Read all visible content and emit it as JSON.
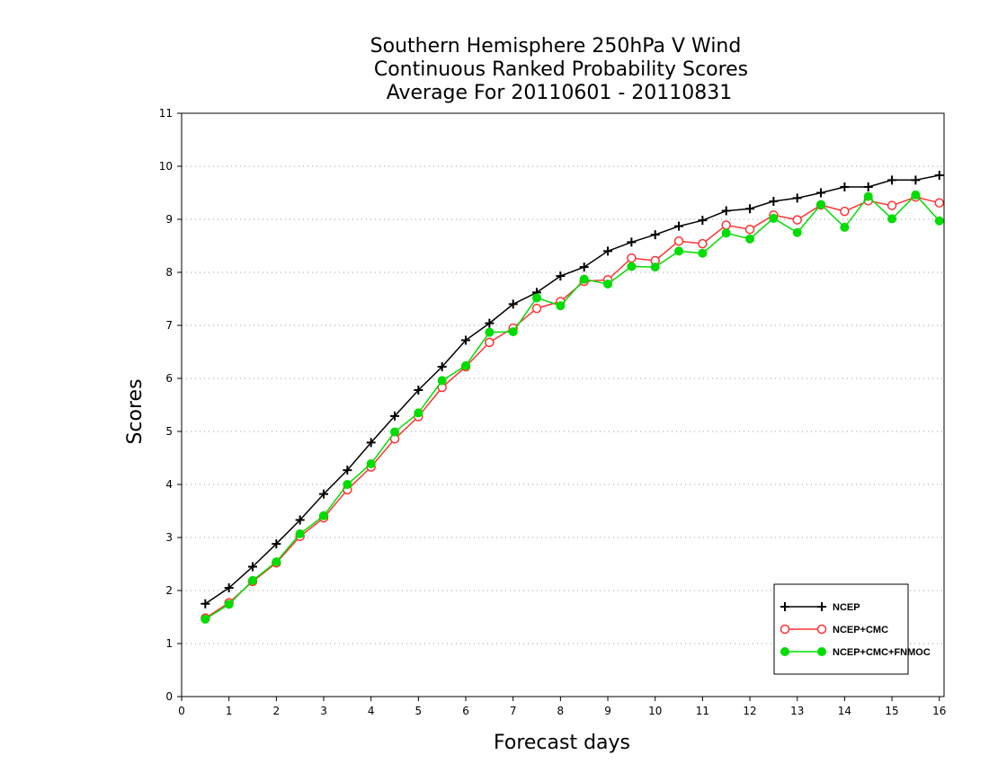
{
  "chart_data": {
    "type": "line",
    "title": [
      "Southern Hemisphere 250hPa V Wind",
      "Continuous Ranked Probability Scores",
      "Average For 20110601 - 20110831"
    ],
    "xlabel": "Forecast days",
    "ylabel": "Scores",
    "xlim": [
      0,
      16.1
    ],
    "ylim": [
      0,
      11
    ],
    "xticks": [
      "0",
      "1",
      "2",
      "3",
      "4",
      "5",
      "6",
      "7",
      "8",
      "9",
      "10",
      "11",
      "12",
      "13",
      "14",
      "15",
      "16"
    ],
    "yticks": [
      "0",
      "1",
      "2",
      "3",
      "4",
      "5",
      "6",
      "7",
      "8",
      "9",
      "10",
      "11"
    ],
    "grid": "horizontal dotted",
    "legend_position": "bottom-right",
    "x": [
      0.5,
      1,
      1.5,
      2,
      2.5,
      3,
      3.5,
      4,
      4.5,
      5,
      5.5,
      6,
      6.5,
      7,
      7.5,
      8,
      8.5,
      9,
      9.5,
      10,
      10.5,
      11,
      11.5,
      12,
      12.5,
      13,
      13.5,
      14,
      14.5,
      15,
      15.5,
      16
    ],
    "series": [
      {
        "name": "NCEP",
        "color": "#000000",
        "marker": "plus",
        "values": [
          1.75,
          2.05,
          2.45,
          2.88,
          3.33,
          3.82,
          4.27,
          4.79,
          5.29,
          5.78,
          6.22,
          6.72,
          7.04,
          7.4,
          7.62,
          7.93,
          8.1,
          8.4,
          8.57,
          8.71,
          8.87,
          8.98,
          9.16,
          9.2,
          9.34,
          9.4,
          9.5,
          9.61,
          9.61,
          9.74,
          9.74,
          9.83
        ]
      },
      {
        "name": "NCEP+CMC",
        "color": "#ff3333",
        "marker": "open-circle",
        "values": [
          1.48,
          1.77,
          2.17,
          2.52,
          3.02,
          3.37,
          3.9,
          4.33,
          4.86,
          5.28,
          5.83,
          6.22,
          6.68,
          6.95,
          7.32,
          7.45,
          7.83,
          7.86,
          8.27,
          8.22,
          8.59,
          8.54,
          8.89,
          8.81,
          9.08,
          8.99,
          9.27,
          9.15,
          9.35,
          9.26,
          9.42,
          9.31
        ]
      },
      {
        "name": "NCEP+CMC+FNMOC",
        "color": "#00dd00",
        "marker": "filled-circle",
        "values": [
          1.46,
          1.74,
          2.19,
          2.54,
          3.07,
          3.41,
          4.0,
          4.39,
          4.99,
          5.35,
          5.96,
          6.24,
          6.87,
          6.88,
          7.52,
          7.37,
          7.87,
          7.78,
          8.11,
          8.1,
          8.4,
          8.36,
          8.74,
          8.63,
          9.02,
          8.75,
          9.28,
          8.85,
          9.43,
          9.01,
          9.46,
          8.97
        ]
      }
    ]
  }
}
